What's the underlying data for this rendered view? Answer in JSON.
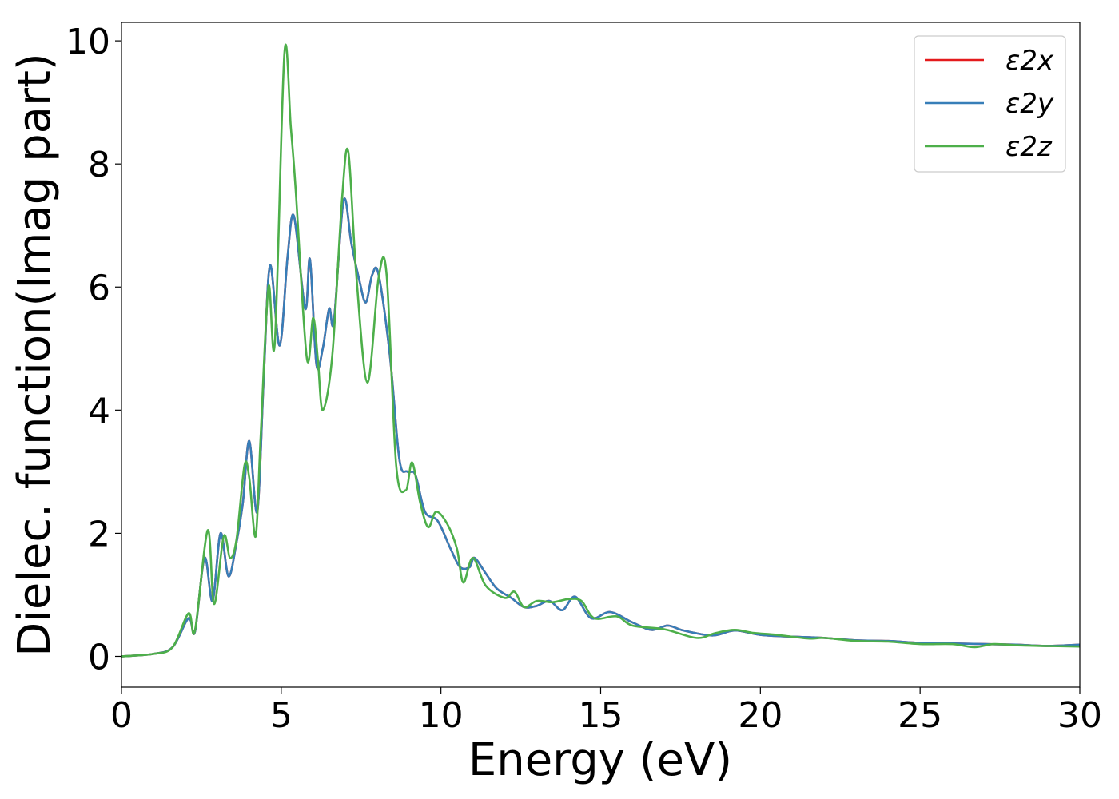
{
  "chart_data": {
    "type": "line",
    "xlabel": "Energy (eV)",
    "ylabel": "Dielec. function(Imag part)",
    "xlim": [
      0,
      30
    ],
    "ylim": [
      -0.5,
      10.3
    ],
    "x_ticks": [
      0,
      5,
      10,
      15,
      20,
      25,
      30
    ],
    "y_ticks": [
      0,
      2,
      4,
      6,
      8,
      10
    ],
    "x_tick_labels": [
      "0",
      "5",
      "10",
      "15",
      "20",
      "25",
      "30"
    ],
    "y_tick_labels": [
      "0",
      "2",
      "4",
      "6",
      "8",
      "10"
    ],
    "grid": false,
    "legend_position": "top-right",
    "series": [
      {
        "name": "ε2x",
        "color": "#e41a1c",
        "points": [
          [
            0,
            0
          ],
          [
            1,
            0.04
          ],
          [
            1.6,
            0.15
          ],
          [
            2.1,
            0.62
          ],
          [
            2.3,
            0.4
          ],
          [
            2.6,
            1.6
          ],
          [
            2.85,
            0.9
          ],
          [
            3.1,
            2.0
          ],
          [
            3.35,
            1.3
          ],
          [
            3.6,
            1.85
          ],
          [
            3.8,
            2.5
          ],
          [
            4.0,
            3.5
          ],
          [
            4.25,
            2.35
          ],
          [
            4.45,
            4.5
          ],
          [
            4.65,
            6.35
          ],
          [
            4.95,
            5.05
          ],
          [
            5.2,
            6.5
          ],
          [
            5.4,
            7.15
          ],
          [
            5.75,
            5.65
          ],
          [
            5.9,
            6.45
          ],
          [
            6.1,
            4.75
          ],
          [
            6.3,
            5.0
          ],
          [
            6.5,
            5.65
          ],
          [
            6.65,
            5.45
          ],
          [
            6.95,
            7.4
          ],
          [
            7.2,
            6.7
          ],
          [
            7.45,
            6.1
          ],
          [
            7.65,
            5.75
          ],
          [
            7.85,
            6.2
          ],
          [
            8.05,
            6.2
          ],
          [
            8.4,
            4.9
          ],
          [
            8.7,
            3.2
          ],
          [
            8.95,
            3.0
          ],
          [
            9.2,
            2.95
          ],
          [
            9.5,
            2.35
          ],
          [
            9.9,
            2.2
          ],
          [
            10.3,
            1.75
          ],
          [
            10.6,
            1.45
          ],
          [
            10.9,
            1.45
          ],
          [
            11.05,
            1.6
          ],
          [
            11.4,
            1.35
          ],
          [
            11.75,
            1.1
          ],
          [
            12.2,
            0.95
          ],
          [
            12.6,
            0.8
          ],
          [
            13.0,
            0.82
          ],
          [
            13.4,
            0.9
          ],
          [
            13.8,
            0.75
          ],
          [
            14.2,
            0.97
          ],
          [
            14.7,
            0.62
          ],
          [
            15.3,
            0.72
          ],
          [
            16.0,
            0.55
          ],
          [
            16.6,
            0.43
          ],
          [
            17.1,
            0.5
          ],
          [
            17.6,
            0.42
          ],
          [
            18.5,
            0.34
          ],
          [
            19.2,
            0.42
          ],
          [
            20.0,
            0.35
          ],
          [
            21.0,
            0.32
          ],
          [
            22.0,
            0.3
          ],
          [
            23.0,
            0.26
          ],
          [
            24.0,
            0.25
          ],
          [
            25.0,
            0.22
          ],
          [
            26.0,
            0.21
          ],
          [
            27.0,
            0.2
          ],
          [
            28.0,
            0.19
          ],
          [
            29.0,
            0.17
          ],
          [
            30,
            0.19
          ]
        ]
      },
      {
        "name": "ε2y",
        "color": "#377eb8",
        "points": [
          [
            0,
            0
          ],
          [
            1,
            0.04
          ],
          [
            1.6,
            0.15
          ],
          [
            2.1,
            0.62
          ],
          [
            2.3,
            0.4
          ],
          [
            2.6,
            1.6
          ],
          [
            2.85,
            0.9
          ],
          [
            3.1,
            2.0
          ],
          [
            3.35,
            1.3
          ],
          [
            3.6,
            1.85
          ],
          [
            3.8,
            2.5
          ],
          [
            4.0,
            3.5
          ],
          [
            4.25,
            2.35
          ],
          [
            4.45,
            4.5
          ],
          [
            4.65,
            6.35
          ],
          [
            4.95,
            5.05
          ],
          [
            5.2,
            6.5
          ],
          [
            5.4,
            7.15
          ],
          [
            5.75,
            5.65
          ],
          [
            5.9,
            6.45
          ],
          [
            6.1,
            4.75
          ],
          [
            6.3,
            5.0
          ],
          [
            6.5,
            5.65
          ],
          [
            6.65,
            5.45
          ],
          [
            6.95,
            7.4
          ],
          [
            7.2,
            6.7
          ],
          [
            7.45,
            6.1
          ],
          [
            7.65,
            5.75
          ],
          [
            7.85,
            6.2
          ],
          [
            8.05,
            6.2
          ],
          [
            8.4,
            4.9
          ],
          [
            8.7,
            3.2
          ],
          [
            8.95,
            3.0
          ],
          [
            9.2,
            2.95
          ],
          [
            9.5,
            2.35
          ],
          [
            9.9,
            2.2
          ],
          [
            10.3,
            1.75
          ],
          [
            10.6,
            1.45
          ],
          [
            10.9,
            1.45
          ],
          [
            11.05,
            1.6
          ],
          [
            11.4,
            1.35
          ],
          [
            11.75,
            1.1
          ],
          [
            12.2,
            0.95
          ],
          [
            12.6,
            0.8
          ],
          [
            13.0,
            0.82
          ],
          [
            13.4,
            0.9
          ],
          [
            13.8,
            0.75
          ],
          [
            14.2,
            0.97
          ],
          [
            14.7,
            0.62
          ],
          [
            15.3,
            0.72
          ],
          [
            16.0,
            0.55
          ],
          [
            16.6,
            0.43
          ],
          [
            17.1,
            0.5
          ],
          [
            17.6,
            0.42
          ],
          [
            18.5,
            0.34
          ],
          [
            19.2,
            0.42
          ],
          [
            20.0,
            0.35
          ],
          [
            21.0,
            0.32
          ],
          [
            22.0,
            0.3
          ],
          [
            23.0,
            0.26
          ],
          [
            24.0,
            0.25
          ],
          [
            25.0,
            0.22
          ],
          [
            26.0,
            0.21
          ],
          [
            27.0,
            0.2
          ],
          [
            28.0,
            0.19
          ],
          [
            29.0,
            0.17
          ],
          [
            30,
            0.19
          ]
        ]
      },
      {
        "name": "ε2z",
        "color": "#4daf4a",
        "points": [
          [
            0,
            0
          ],
          [
            1,
            0.04
          ],
          [
            1.6,
            0.15
          ],
          [
            2.1,
            0.7
          ],
          [
            2.3,
            0.42
          ],
          [
            2.7,
            2.05
          ],
          [
            2.9,
            0.85
          ],
          [
            3.2,
            1.95
          ],
          [
            3.4,
            1.6
          ],
          [
            3.6,
            1.9
          ],
          [
            3.85,
            3.1
          ],
          [
            4.0,
            2.9
          ],
          [
            4.2,
            1.95
          ],
          [
            4.35,
            3.5
          ],
          [
            4.6,
            6.0
          ],
          [
            4.8,
            5.1
          ],
          [
            5.1,
            9.8
          ],
          [
            5.3,
            8.6
          ],
          [
            5.45,
            7.6
          ],
          [
            5.8,
            4.85
          ],
          [
            6.0,
            5.5
          ],
          [
            6.15,
            4.8
          ],
          [
            6.3,
            4.0
          ],
          [
            6.6,
            4.9
          ],
          [
            6.9,
            7.4
          ],
          [
            7.1,
            8.2
          ],
          [
            7.35,
            6.2
          ],
          [
            7.7,
            4.45
          ],
          [
            8.05,
            6.15
          ],
          [
            8.3,
            6.2
          ],
          [
            8.6,
            3.1
          ],
          [
            8.9,
            2.7
          ],
          [
            9.1,
            3.15
          ],
          [
            9.35,
            2.5
          ],
          [
            9.6,
            2.1
          ],
          [
            9.85,
            2.35
          ],
          [
            10.2,
            2.15
          ],
          [
            10.5,
            1.75
          ],
          [
            10.7,
            1.2
          ],
          [
            11.0,
            1.6
          ],
          [
            11.4,
            1.15
          ],
          [
            12.0,
            0.95
          ],
          [
            12.3,
            1.05
          ],
          [
            12.6,
            0.8
          ],
          [
            13.0,
            0.9
          ],
          [
            13.5,
            0.88
          ],
          [
            14.0,
            0.93
          ],
          [
            14.4,
            0.9
          ],
          [
            14.8,
            0.62
          ],
          [
            15.5,
            0.65
          ],
          [
            16.0,
            0.5
          ],
          [
            17.0,
            0.44
          ],
          [
            18.0,
            0.3
          ],
          [
            18.6,
            0.38
          ],
          [
            19.2,
            0.43
          ],
          [
            19.8,
            0.38
          ],
          [
            20.5,
            0.35
          ],
          [
            21.5,
            0.29
          ],
          [
            22.0,
            0.3
          ],
          [
            23.0,
            0.25
          ],
          [
            24.0,
            0.24
          ],
          [
            25.0,
            0.2
          ],
          [
            26.0,
            0.2
          ],
          [
            26.7,
            0.15
          ],
          [
            27.3,
            0.2
          ],
          [
            28.0,
            0.18
          ],
          [
            28.8,
            0.17
          ],
          [
            30,
            0.16
          ]
        ]
      }
    ]
  }
}
